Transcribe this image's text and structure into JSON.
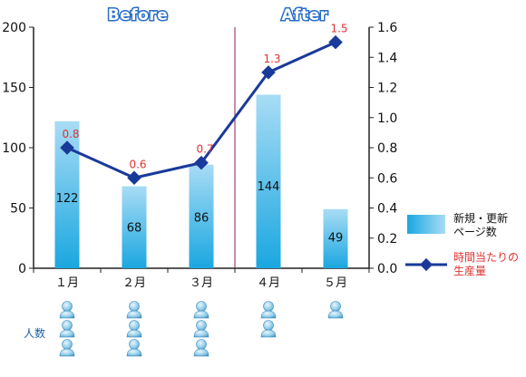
{
  "chart_data": {
    "type": "bar",
    "categories": [
      "１月",
      "２月",
      "３月",
      "４月",
      "５月"
    ],
    "series": [
      {
        "name": "新規・更新ページ数",
        "type": "bar",
        "axis": "left",
        "values": [
          122,
          68,
          86,
          144,
          49
        ]
      },
      {
        "name": "時間当たりの生産量",
        "type": "line",
        "axis": "right",
        "values": [
          0.8,
          0.6,
          0.7,
          1.3,
          1.5
        ]
      }
    ],
    "ylim_left": [
      0,
      200
    ],
    "ylim_right": [
      0,
      1.6
    ],
    "yticks_left": [
      "0",
      "50",
      "100",
      "150",
      "200"
    ],
    "yticks_right": [
      "0.0",
      "0.2",
      "0.4",
      "0.6",
      "0.8",
      "1.0",
      "1.2",
      "1.4",
      "1.6"
    ],
    "annotations": {
      "before": "Before",
      "after": "After"
    },
    "legend": {
      "position": "right",
      "bar_label_lines": [
        "新規・更新",
        "ページ数"
      ],
      "line_label_lines": [
        "時間当たりの",
        "生産量"
      ]
    },
    "people": {
      "label": "人数",
      "counts": [
        3,
        3,
        3,
        2,
        1
      ]
    },
    "colors": {
      "bar_top": "#a8dcf5",
      "bar_bottom": "#1aa7e0",
      "line": "#1a3a9a",
      "line_label": "#e03030",
      "divider": "#8b1e5a",
      "phase_outline": "#2a6ec8"
    }
  }
}
